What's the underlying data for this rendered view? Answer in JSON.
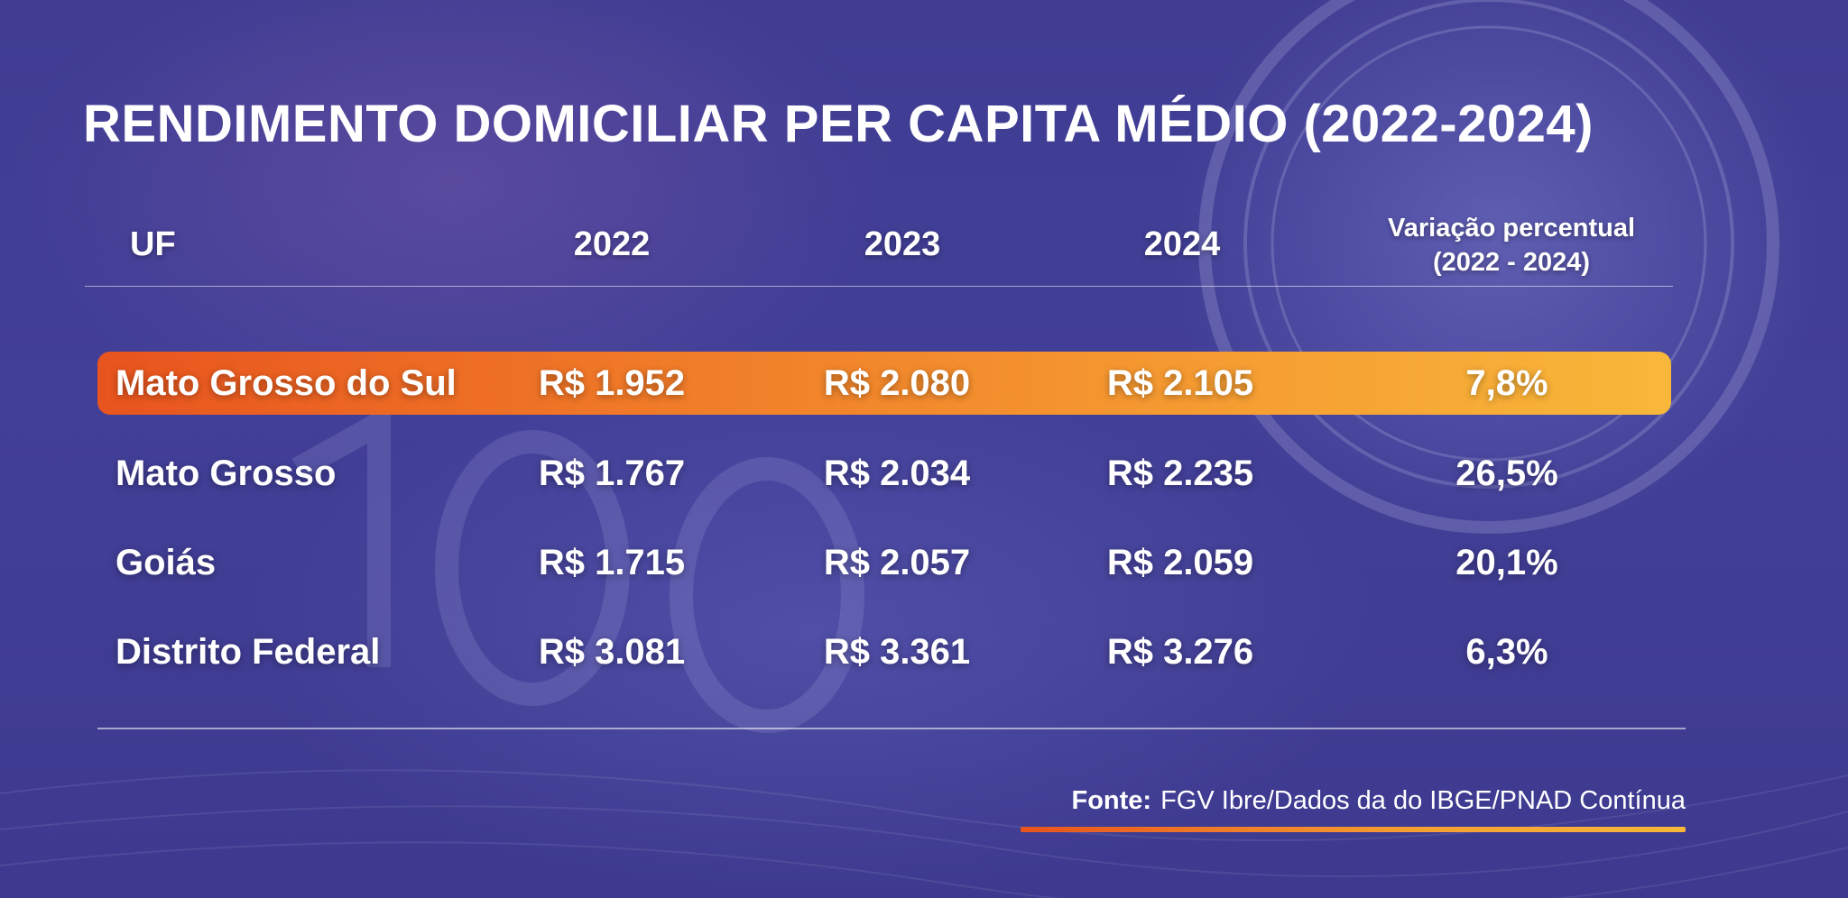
{
  "colors": {
    "background": "#3f3c92",
    "highlight_start": "#e8541e",
    "highlight_end": "#f8b73a",
    "text": "#ffffff"
  },
  "background_icons": [
    "banknote-100-reais-icon",
    "coin-1-real-icon"
  ],
  "chart_data": {
    "type": "table",
    "title": "RENDIMENTO DOMICILIAR PER CAPITA MÉDIO (2022-2024)",
    "columns": [
      "UF",
      "2022",
      "2023",
      "2024"
    ],
    "variation_header": [
      "Variação percentual",
      "(2022 - 2024)"
    ],
    "rows": [
      {
        "uf": "Mato Grosso do Sul",
        "v2022": "R$ 1.952",
        "v2023": "R$ 2.080",
        "v2024": "R$ 2.105",
        "variation": "7,8%",
        "highlighted": true
      },
      {
        "uf": "Mato Grosso",
        "v2022": "R$ 1.767",
        "v2023": "R$ 2.034",
        "v2024": "R$ 2.235",
        "variation": "26,5%",
        "highlighted": false
      },
      {
        "uf": "Goiás",
        "v2022": "R$ 1.715",
        "v2023": "R$ 2.057",
        "v2024": "R$ 2.059",
        "variation": "20,1%",
        "highlighted": false
      },
      {
        "uf": "Distrito Federal",
        "v2022": "R$ 3.081",
        "v2023": "R$ 3.361",
        "v2024": "R$ 3.276",
        "variation": "6,3%",
        "highlighted": false
      }
    ],
    "source_label": "Fonte:",
    "source_text": "FGV Ibre/Dados da do IBGE/PNAD Contínua"
  }
}
